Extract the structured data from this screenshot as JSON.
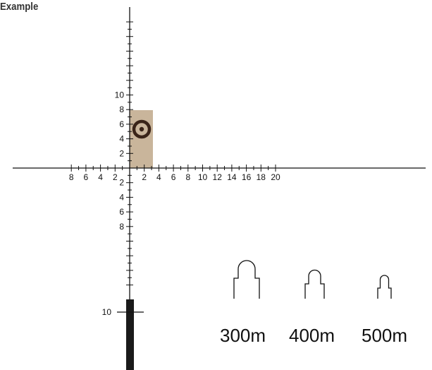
{
  "title": "Example",
  "reticle": {
    "horizontal_ticks": [
      "8",
      "6",
      "4",
      "2",
      "2",
      "4",
      "6",
      "8",
      "10",
      "12",
      "14",
      "16",
      "18",
      "20"
    ],
    "vertical_up_ticks": [
      "2",
      "4",
      "6",
      "8",
      "10"
    ],
    "vertical_down_ticks": [
      "2",
      "4",
      "6",
      "8"
    ],
    "post_label": "10"
  },
  "target": {
    "highlight_color": "#c9b59b",
    "ring_color": "#3a2418"
  },
  "silhouettes": [
    {
      "label": "300m"
    },
    {
      "label": "400m"
    },
    {
      "label": "500m"
    }
  ]
}
